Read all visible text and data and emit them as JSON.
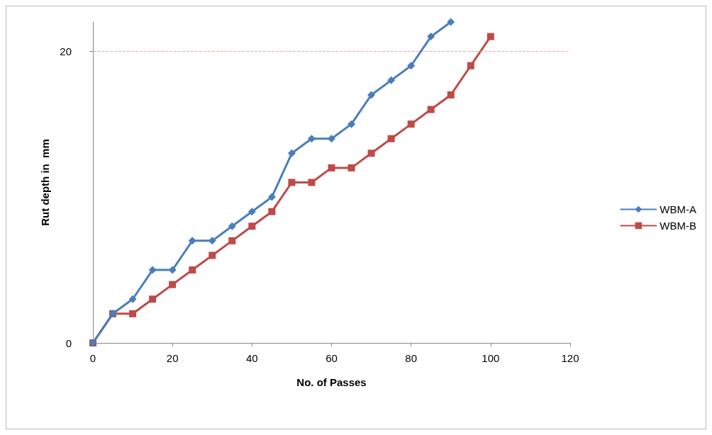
{
  "chart_data": {
    "type": "line",
    "xlabel": "No. of Passes",
    "ylabel": "Rut depth in  mm",
    "xlim": [
      0,
      120
    ],
    "xticks": [
      0,
      20,
      40,
      60,
      80,
      100,
      120
    ],
    "ylim": [
      0,
      22
    ],
    "yticks": [
      0,
      20
    ],
    "grid": false,
    "legend": "right",
    "ref_lines": [
      {
        "axis": "y",
        "value": 20,
        "color": "#f4a0a0",
        "line_style": "dashed"
      }
    ],
    "series": [
      {
        "name": "WBM-A",
        "color": "#4a7ebb",
        "marker": "diamond",
        "x": [
          0,
          5,
          10,
          15,
          20,
          25,
          30,
          35,
          40,
          45,
          50,
          55,
          60,
          65,
          70,
          75,
          80,
          85,
          90
        ],
        "values": [
          0,
          2,
          3,
          5,
          5,
          7,
          7,
          8,
          9,
          10,
          13,
          14,
          14,
          15,
          17,
          18,
          19,
          21,
          22
        ]
      },
      {
        "name": "WBM-B",
        "color": "#be4b48",
        "marker": "square",
        "x": [
          0,
          5,
          10,
          15,
          20,
          25,
          30,
          35,
          40,
          45,
          50,
          55,
          60,
          65,
          70,
          75,
          80,
          85,
          90,
          95,
          100
        ],
        "values": [
          0,
          2,
          2,
          3,
          4,
          5,
          6,
          7,
          8,
          9,
          11,
          11,
          12,
          12,
          13,
          14,
          15,
          16,
          17,
          19,
          21
        ]
      }
    ]
  }
}
